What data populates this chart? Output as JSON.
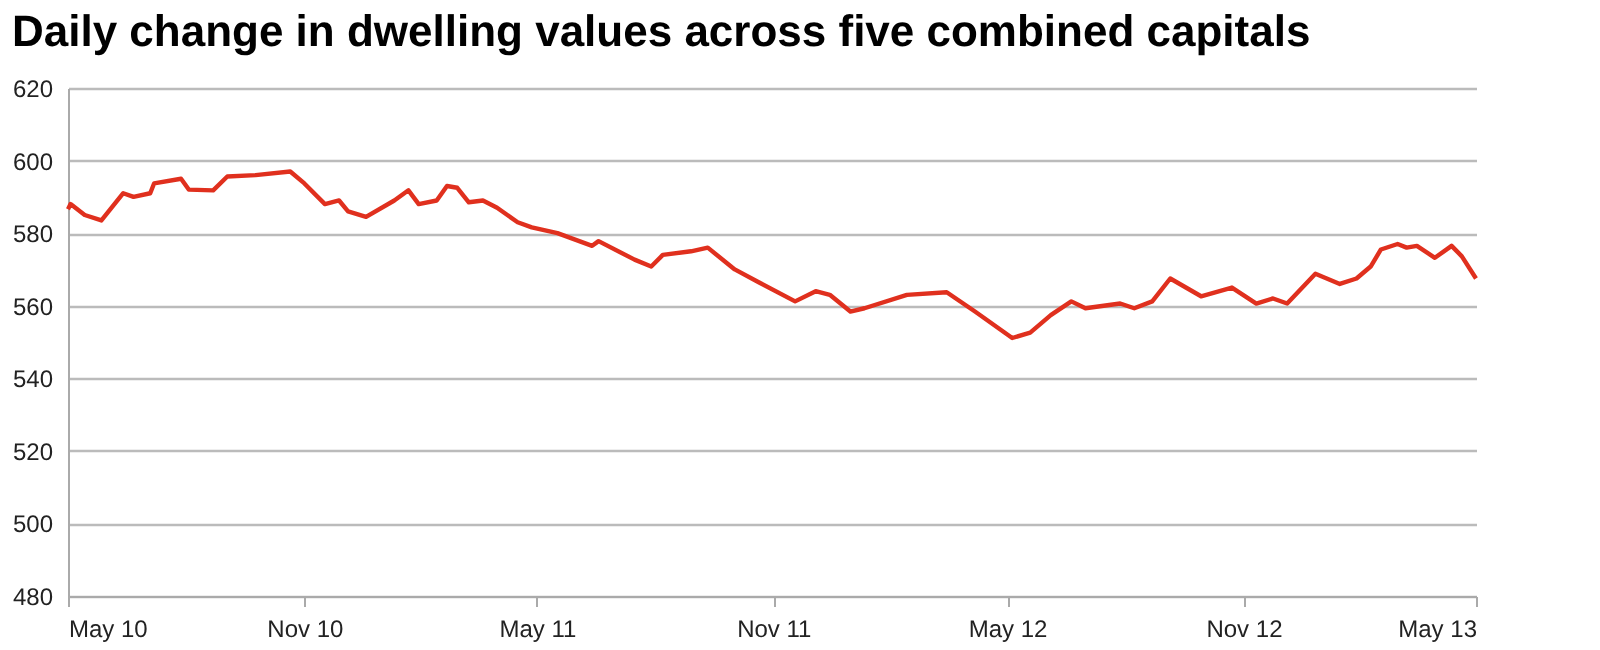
{
  "chart_data": {
    "type": "line",
    "title": "Daily change in dwelling values across five combined capitals",
    "x": [
      "2010-05-01",
      "2010-05-03",
      "2010-05-14",
      "2010-05-27",
      "2010-06-13",
      "2010-06-21",
      "2010-07-04",
      "2010-07-07",
      "2010-07-28",
      "2010-08-03",
      "2010-08-22",
      "2010-09-02",
      "2010-09-24",
      "2010-10-21",
      "2010-11-01",
      "2010-11-17",
      "2010-11-28",
      "2010-12-05",
      "2010-12-19",
      "2011-01-10",
      "2011-01-21",
      "2011-01-29",
      "2011-02-12",
      "2011-02-20",
      "2011-02-28",
      "2011-03-09",
      "2011-03-20",
      "2011-03-31",
      "2011-04-16",
      "2011-04-27",
      "2011-05-17",
      "2011-06-13",
      "2011-06-18",
      "2011-07-16",
      "2011-07-29",
      "2011-08-07",
      "2011-08-29",
      "2011-09-11",
      "2011-10-02",
      "2011-10-21",
      "2011-11-18",
      "2011-12-04",
      "2011-12-15",
      "2011-12-31",
      "2012-01-11",
      "2012-02-13",
      "2012-03-15",
      "2012-04-06",
      "2012-05-05",
      "2012-05-19",
      "2012-06-04",
      "2012-06-20",
      "2012-07-01",
      "2012-07-28",
      "2012-08-08",
      "2012-08-22",
      "2012-09-05",
      "2012-09-29",
      "2012-10-23",
      "2012-11-11",
      "2012-11-24",
      "2012-12-05",
      "2012-12-27",
      "2013-01-15",
      "2013-01-28",
      "2013-02-08",
      "2013-02-16",
      "2013-03-01",
      "2013-03-08",
      "2013-03-16",
      "2013-03-30",
      "2013-04-12",
      "2013-04-20",
      "2013-05-01"
    ],
    "series": [
      {
        "color": "#e0301e",
        "values": [
          586.6,
          588,
          585,
          583.5,
          591,
          590,
          591,
          593.7,
          595,
          592,
          591.8,
          595.6,
          596,
          597,
          593.7,
          588,
          589,
          586,
          584.5,
          589,
          591.8,
          588,
          589,
          593,
          592.5,
          588.5,
          589,
          587,
          583,
          581.6,
          580,
          576.5,
          577.8,
          572.7,
          570.8,
          574,
          575,
          576,
          570,
          566.4,
          561.2,
          564,
          563,
          558.4,
          559.3,
          563,
          563.7,
          558.4,
          551.1,
          552.6,
          557.4,
          561.2,
          559.3,
          560.6,
          559.3,
          561.2,
          567.5,
          562.6,
          565,
          560.6,
          562,
          560.6,
          568.8,
          566,
          567.5,
          570.8,
          575.5,
          577,
          576,
          576.5,
          573.2,
          576.5,
          573.6,
          567.5
        ]
      }
    ],
    "xlim": [
      "2010-05-01",
      "2013-05-01"
    ],
    "xticks": [
      {
        "value": "2010-05-01",
        "label": "May 10"
      },
      {
        "value": "2010-11-01",
        "label": "Nov 10"
      },
      {
        "value": "2011-05-01",
        "label": "May 11"
      },
      {
        "value": "2011-11-01",
        "label": "Nov 11"
      },
      {
        "value": "2012-05-01",
        "label": "May 12"
      },
      {
        "value": "2012-11-01",
        "label": "Nov 12"
      },
      {
        "value": "2013-05-01",
        "label": "May 13"
      }
    ],
    "ylim": [
      480,
      620
    ],
    "yticks": [
      480,
      500,
      520,
      540,
      560,
      580,
      600,
      620
    ],
    "grid": "y",
    "legend": false,
    "marker": "none",
    "line_style": "solid"
  }
}
